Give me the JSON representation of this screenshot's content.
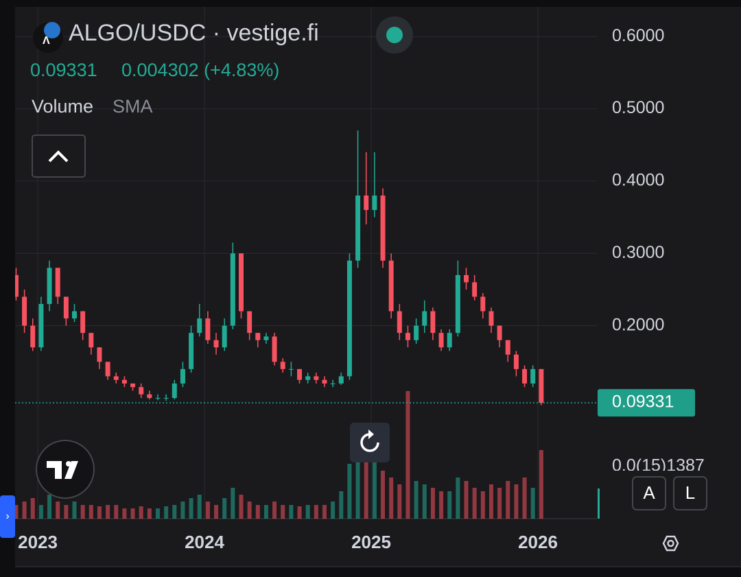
{
  "chart_data": {
    "type": "candlestick",
    "title": "ALGO/USDC · vestige.fi",
    "legend": {
      "close": "0.09331",
      "change": "0.004302 (+4.83%)"
    },
    "indicators": [
      "Volume",
      "SMA"
    ],
    "buttons": [
      "A",
      "L"
    ],
    "price_label": {
      "value": 0.09331,
      "label": "0.09331"
    },
    "partial_price_label": "0.0(15)1387",
    "up_color": "#22ab94",
    "down_color": "#f7525f",
    "grid": true,
    "xlim": [
      2022.864,
      2026.354
    ],
    "xticks": [
      2023,
      2024,
      2025,
      2026
    ],
    "ylim": [
      -0.067,
      0.641
    ],
    "yticks": [
      {
        "value": 0.6,
        "label": "0.6000"
      },
      {
        "value": 0.5,
        "label": "0.5000"
      },
      {
        "value": 0.4,
        "label": "0.4000"
      },
      {
        "value": 0.3,
        "label": "0.3000"
      },
      {
        "value": 0.2,
        "label": "0.2000"
      }
    ],
    "x": [
      2022.87,
      2022.92,
      2022.97,
      2023.02,
      2023.07,
      2023.12,
      2023.17,
      2023.22,
      2023.27,
      2023.32,
      2023.37,
      2023.42,
      2023.47,
      2023.52,
      2023.57,
      2023.62,
      2023.67,
      2023.72,
      2023.77,
      2023.82,
      2023.87,
      2023.92,
      2023.97,
      2024.02,
      2024.07,
      2024.12,
      2024.17,
      2024.22,
      2024.27,
      2024.32,
      2024.37,
      2024.42,
      2024.47,
      2024.52,
      2024.57,
      2024.62,
      2024.67,
      2024.72,
      2024.77,
      2024.82,
      2024.87,
      2024.92,
      2024.97,
      2025.02,
      2025.07,
      2025.12,
      2025.17,
      2025.22,
      2025.27,
      2025.32,
      2025.37,
      2025.42,
      2025.47,
      2025.52,
      2025.57,
      2025.62,
      2025.67,
      2025.72,
      2025.77,
      2025.82,
      2025.87,
      2025.92,
      2025.97,
      2026.02
    ],
    "open": [
      0.27,
      0.24,
      0.2,
      0.17,
      0.23,
      0.28,
      0.24,
      0.21,
      0.22,
      0.19,
      0.17,
      0.15,
      0.13,
      0.125,
      0.12,
      0.115,
      0.105,
      0.1,
      0.1,
      0.1,
      0.12,
      0.14,
      0.19,
      0.21,
      0.18,
      0.17,
      0.2,
      0.3,
      0.22,
      0.19,
      0.18,
      0.185,
      0.15,
      0.14,
      0.14,
      0.125,
      0.13,
      0.125,
      0.12,
      0.12,
      0.13,
      0.29,
      0.38,
      0.36,
      0.38,
      0.29,
      0.22,
      0.19,
      0.18,
      0.2,
      0.22,
      0.19,
      0.17,
      0.19,
      0.27,
      0.26,
      0.24,
      0.22,
      0.2,
      0.18,
      0.16,
      0.14,
      0.12,
      0.14
    ],
    "high": [
      0.28,
      0.25,
      0.21,
      0.24,
      0.29,
      0.28,
      0.24,
      0.23,
      0.22,
      0.19,
      0.17,
      0.15,
      0.135,
      0.13,
      0.12,
      0.12,
      0.11,
      0.105,
      0.105,
      0.125,
      0.15,
      0.2,
      0.23,
      0.22,
      0.19,
      0.21,
      0.315,
      0.3,
      0.22,
      0.19,
      0.19,
      0.19,
      0.155,
      0.15,
      0.14,
      0.135,
      0.135,
      0.13,
      0.125,
      0.135,
      0.3,
      0.47,
      0.44,
      0.44,
      0.39,
      0.3,
      0.23,
      0.2,
      0.21,
      0.235,
      0.225,
      0.195,
      0.195,
      0.29,
      0.28,
      0.27,
      0.245,
      0.225,
      0.2,
      0.18,
      0.165,
      0.145,
      0.145,
      0.14
    ],
    "low": [
      0.235,
      0.19,
      0.165,
      0.165,
      0.22,
      0.23,
      0.2,
      0.205,
      0.18,
      0.16,
      0.14,
      0.125,
      0.12,
      0.115,
      0.11,
      0.1,
      0.098,
      0.097,
      0.096,
      0.098,
      0.115,
      0.135,
      0.185,
      0.175,
      0.16,
      0.165,
      0.195,
      0.21,
      0.18,
      0.17,
      0.175,
      0.145,
      0.135,
      0.13,
      0.12,
      0.12,
      0.12,
      0.115,
      0.115,
      0.118,
      0.125,
      0.28,
      0.34,
      0.35,
      0.28,
      0.21,
      0.18,
      0.17,
      0.175,
      0.19,
      0.18,
      0.165,
      0.165,
      0.185,
      0.25,
      0.235,
      0.21,
      0.19,
      0.17,
      0.15,
      0.13,
      0.115,
      0.115,
      0.09
    ],
    "close": [
      0.24,
      0.2,
      0.17,
      0.23,
      0.28,
      0.24,
      0.21,
      0.22,
      0.19,
      0.17,
      0.15,
      0.13,
      0.125,
      0.12,
      0.115,
      0.105,
      0.1,
      0.1,
      0.1,
      0.12,
      0.14,
      0.19,
      0.21,
      0.18,
      0.17,
      0.2,
      0.3,
      0.22,
      0.19,
      0.18,
      0.185,
      0.15,
      0.14,
      0.14,
      0.125,
      0.13,
      0.125,
      0.12,
      0.12,
      0.13,
      0.29,
      0.38,
      0.36,
      0.38,
      0.29,
      0.22,
      0.19,
      0.18,
      0.2,
      0.22,
      0.19,
      0.17,
      0.19,
      0.27,
      0.26,
      0.24,
      0.22,
      0.2,
      0.18,
      0.16,
      0.14,
      0.12,
      0.14,
      0.09331
    ],
    "volume": [
      20,
      25,
      30,
      20,
      35,
      25,
      20,
      25,
      20,
      20,
      18,
      20,
      20,
      15,
      15,
      18,
      15,
      15,
      18,
      20,
      25,
      30,
      35,
      25,
      20,
      30,
      45,
      35,
      25,
      20,
      20,
      25,
      20,
      20,
      18,
      20,
      20,
      20,
      25,
      40,
      80,
      110,
      90,
      85,
      70,
      60,
      50,
      186,
      55,
      50,
      45,
      40,
      40,
      60,
      55,
      45,
      40,
      50,
      45,
      55,
      50,
      60,
      45,
      100
    ]
  }
}
